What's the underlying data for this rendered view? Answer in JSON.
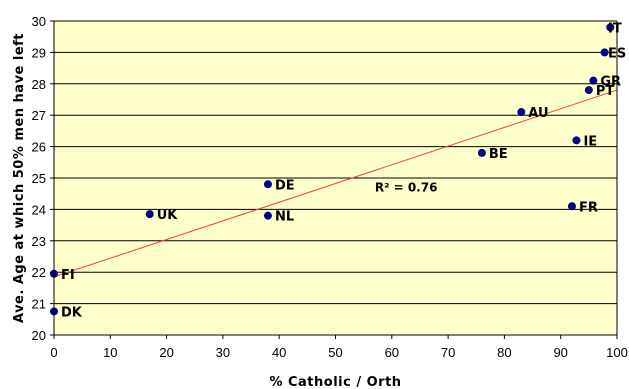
{
  "chart_data": {
    "type": "scatter",
    "title": "",
    "xlabel": "% Catholic / Orth",
    "ylabel": "Ave. Age at which 50% men have left",
    "xlim": [
      0,
      100
    ],
    "ylim": [
      20,
      30
    ],
    "x_ticks": [
      0,
      10,
      20,
      30,
      40,
      50,
      60,
      70,
      80,
      90,
      100
    ],
    "y_ticks": [
      20,
      21,
      22,
      23,
      24,
      25,
      26,
      27,
      28,
      29,
      30
    ],
    "grid": "horizontal",
    "plot_background": "#ffffcc",
    "point_color": "#00008b",
    "trendline_color": "#e8463c",
    "points": [
      {
        "label": "IT",
        "x": 98.8,
        "y": 29.8
      },
      {
        "label": "ES",
        "x": 97.8,
        "y": 29.0
      },
      {
        "label": "GR",
        "x": 95.8,
        "y": 28.1
      },
      {
        "label": "PT",
        "x": 95.0,
        "y": 27.8
      },
      {
        "label": "AU",
        "x": 83.0,
        "y": 27.1
      },
      {
        "label": "IE",
        "x": 92.8,
        "y": 26.2
      },
      {
        "label": "BE",
        "x": 76.0,
        "y": 25.8
      },
      {
        "label": "DE",
        "x": 38.0,
        "y": 24.8
      },
      {
        "label": "FR",
        "x": 92.0,
        "y": 24.1
      },
      {
        "label": "UK",
        "x": 17.0,
        "y": 23.85
      },
      {
        "label": "NL",
        "x": 38.0,
        "y": 23.8
      },
      {
        "label": "FI",
        "x": 0.0,
        "y": 21.95
      },
      {
        "label": "DK",
        "x": 0.0,
        "y": 20.75
      }
    ],
    "trendline": {
      "x": [
        0,
        100
      ],
      "y": [
        21.85,
        27.8
      ]
    },
    "annotation": {
      "text": "R² = 0.76",
      "x": 57,
      "y": 24.7
    }
  }
}
